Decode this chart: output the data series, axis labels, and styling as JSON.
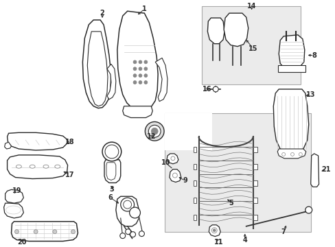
{
  "background_color": "#ffffff",
  "line_color": "#2a2a2a",
  "gray": "#888888",
  "lgray": "#cccccc",
  "box_fill": "#e8e8e8",
  "figsize": [
    4.89,
    3.6
  ],
  "dpi": 100
}
